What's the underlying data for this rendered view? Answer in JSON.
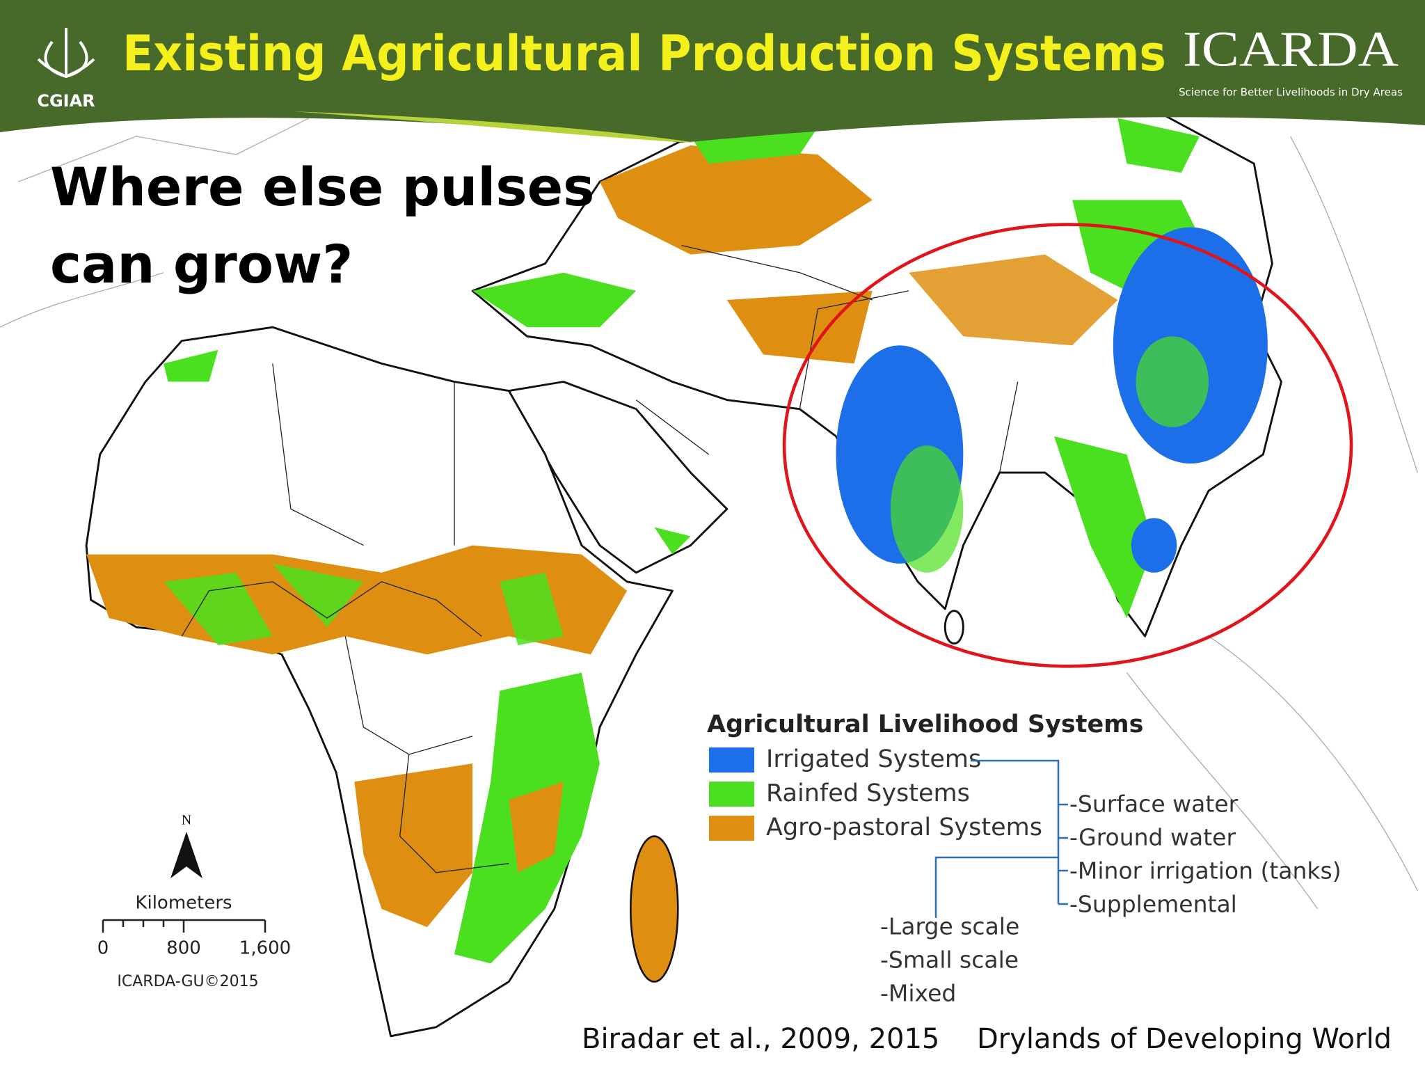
{
  "header": {
    "title": "Existing Agricultural Production Systems",
    "cgiar": "CGIAR",
    "icarda": "ICARDA",
    "icarda_tagline": "Science for Better Livelihoods in Dry Areas"
  },
  "question": [
    "Where else pulses",
    "can grow?"
  ],
  "legend": {
    "title": "Agricultural Livelihood Systems",
    "items": [
      {
        "label": "Irrigated Systems",
        "color": "#1c6fe8"
      },
      {
        "label": "Rainfed Systems",
        "color": "#4be01f"
      },
      {
        "label": "Agro-pastoral Systems",
        "color": "#de8f12"
      }
    ],
    "irrigation_sources": [
      "-Surface water",
      "-Ground water",
      "-Minor irrigation (tanks)",
      "-Supplemental"
    ],
    "irrigation_scales": [
      "-Large scale",
      "-Small scale",
      "-Mixed"
    ]
  },
  "map_scale": {
    "north": "N",
    "unit": "Kilometers",
    "labels": [
      "0",
      "800",
      "1,600"
    ],
    "credit": "ICARDA-GU©2015"
  },
  "citation": {
    "authors": "Biradar et al., 2009, 2015",
    "source": "Drylands of Developing World"
  }
}
